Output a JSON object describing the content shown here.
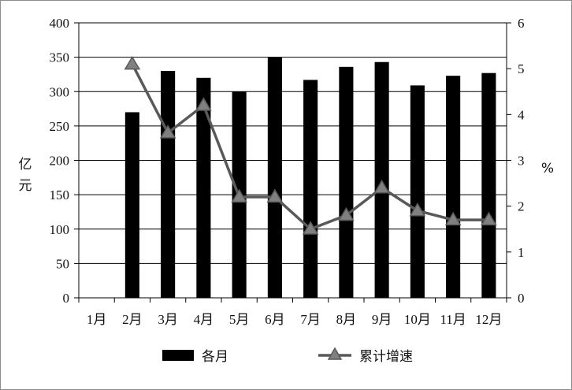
{
  "chart_data": {
    "type": "bar+line",
    "categories": [
      "1月",
      "2月",
      "3月",
      "4月",
      "5月",
      "6月",
      "7月",
      "8月",
      "9月",
      "10月",
      "11月",
      "12月"
    ],
    "series": [
      {
        "name": "各月",
        "type": "bar",
        "axis": "left",
        "values": [
          null,
          270,
          330,
          320,
          300,
          350,
          317,
          336,
          343,
          309,
          323,
          327
        ]
      },
      {
        "name": "累计增速",
        "type": "line",
        "axis": "right",
        "marker": "triangle",
        "values": [
          null,
          5.1,
          3.6,
          4.2,
          2.2,
          2.2,
          1.5,
          1.8,
          2.4,
          1.9,
          1.7,
          1.7
        ]
      }
    ],
    "ylabel_left": "亿元",
    "ylabel_right": "%",
    "ylim_left": [
      0,
      400
    ],
    "yticks_left": [
      "0",
      "50",
      "100",
      "150",
      "200",
      "250",
      "300",
      "350",
      "400"
    ],
    "ylim_right": [
      0,
      6
    ],
    "yticks_right": [
      "0",
      "1",
      "2",
      "3",
      "4",
      "5",
      "6"
    ],
    "grid": true,
    "legend_position": "bottom",
    "colors": {
      "bar": "#000000",
      "line": "#595959",
      "marker_fill": "#808080",
      "grid": "#000000"
    }
  }
}
